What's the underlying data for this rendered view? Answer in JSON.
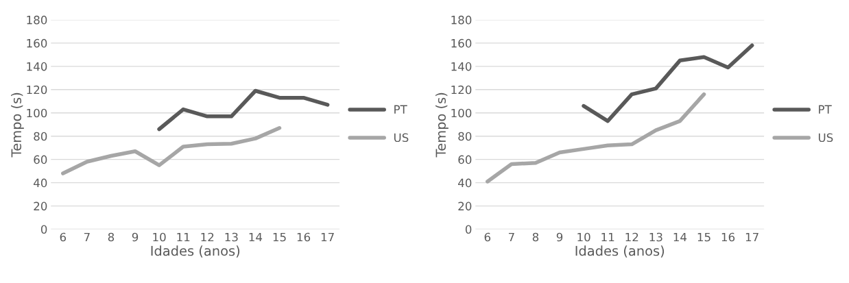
{
  "chart_data": [
    {
      "type": "line",
      "xlabel": "Idades (anos)",
      "ylabel": "Tempo (s)",
      "categories": [
        "6",
        "7",
        "8",
        "9",
        "10",
        "11",
        "12",
        "13",
        "14",
        "15",
        "16",
        "17"
      ],
      "series": [
        {
          "name": "PT",
          "color": "#595959",
          "values": [
            null,
            null,
            null,
            null,
            86,
            103,
            97,
            97,
            119,
            113,
            113,
            107
          ]
        },
        {
          "name": "US",
          "color": "#a6a6a6",
          "values": [
            48,
            58,
            63,
            67,
            55,
            71,
            73,
            73.5,
            78,
            87,
            null,
            null
          ]
        }
      ],
      "ylim": [
        0,
        180
      ],
      "yticks": [
        0,
        20,
        40,
        60,
        80,
        100,
        120,
        140,
        160,
        180
      ],
      "grid": "y",
      "legend": "right"
    },
    {
      "type": "line",
      "xlabel": "Idades (anos)",
      "ylabel": "Tempo (s)",
      "categories": [
        "6",
        "7",
        "8",
        "9",
        "10",
        "11",
        "12",
        "13",
        "14",
        "15",
        "16",
        "17"
      ],
      "series": [
        {
          "name": "PT",
          "color": "#595959",
          "values": [
            null,
            null,
            null,
            null,
            106,
            93,
            116,
            121,
            145,
            148,
            139,
            158
          ]
        },
        {
          "name": "US",
          "color": "#a6a6a6",
          "values": [
            41,
            56,
            57,
            66,
            69,
            72,
            73,
            85,
            93,
            116,
            null,
            null
          ]
        }
      ],
      "ylim": [
        0,
        180
      ],
      "yticks": [
        0,
        20,
        40,
        60,
        80,
        100,
        120,
        140,
        160,
        180
      ],
      "grid": "y",
      "legend": "right"
    }
  ]
}
